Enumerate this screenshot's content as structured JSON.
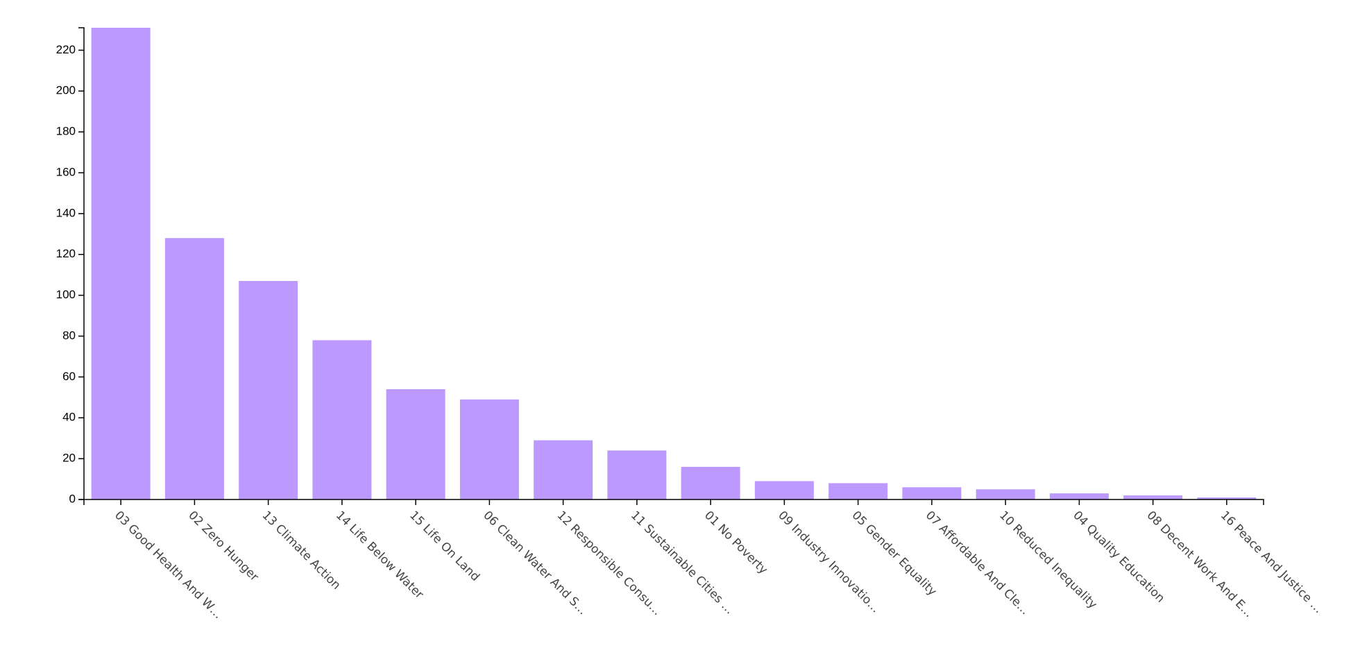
{
  "chart_data": {
    "type": "bar",
    "categories": [
      "03 Good Health And W…",
      "02 Zero Hunger",
      "13 Climate Action",
      "14 Life Below Water",
      "15 Life On Land",
      "06 Clean Water And S…",
      "12 Responsible Consu…",
      "11 Sustainable Cities …",
      "01 No Poverty",
      "09 Industry Innovatio…",
      "05 Gender Equality",
      "07 Affordable And Cle…",
      "10 Reduced Inequality",
      "04 Quality Education",
      "08 Decent Work And E…",
      "16 Peace And Justice …"
    ],
    "values": [
      231,
      128,
      107,
      78,
      54,
      49,
      29,
      24,
      16,
      9,
      8,
      6,
      5,
      3,
      2,
      1
    ],
    "color": "#bb99ff",
    "ylim": [
      0,
      231
    ],
    "yticks": [
      0,
      20,
      40,
      60,
      80,
      100,
      120,
      140,
      160,
      180,
      200,
      220
    ],
    "grid": false
  }
}
